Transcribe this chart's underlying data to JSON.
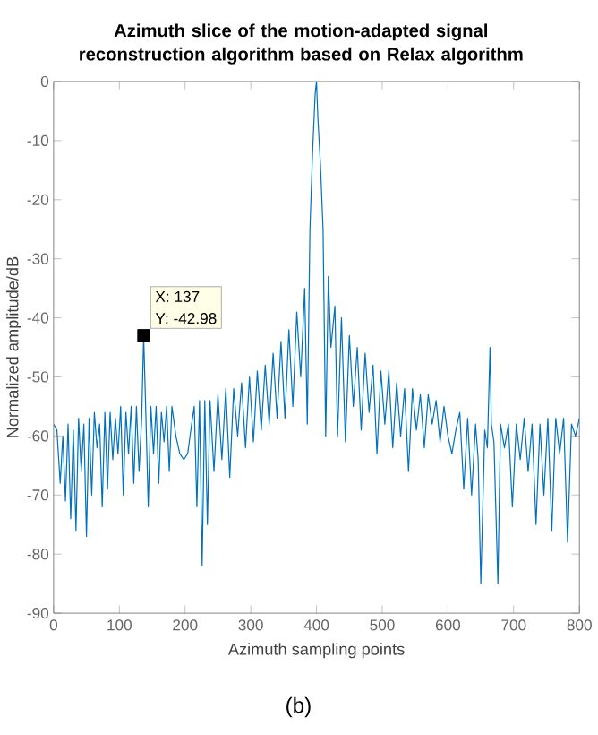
{
  "chart_data": {
    "type": "line",
    "title": "Azimuth slice of the motion-adapted signal reconstruction algorithm based on Relax algorithm",
    "xlabel": "Azimuth sampling points",
    "ylabel": "Normalized amplitude/dB",
    "xlim": [
      0,
      800
    ],
    "ylim": [
      -90,
      0
    ],
    "xticks": [
      0,
      100,
      200,
      300,
      400,
      500,
      600,
      700,
      800
    ],
    "yticks": [
      -90,
      -80,
      -70,
      -60,
      -50,
      -40,
      -30,
      -20,
      -10,
      0
    ],
    "grid": false,
    "marker": "none",
    "line_style": "solid",
    "series": [
      {
        "color": "#0072bd",
        "x": [
          0,
          5,
          10,
          14,
          18,
          22,
          26,
          30,
          34,
          38,
          42,
          46,
          50,
          54,
          58,
          62,
          66,
          70,
          74,
          78,
          82,
          86,
          90,
          94,
          98,
          102,
          106,
          110,
          114,
          118,
          122,
          126,
          130,
          134,
          137,
          140,
          144,
          148,
          152,
          156,
          160,
          164,
          168,
          172,
          176,
          180,
          186,
          192,
          198,
          204,
          210,
          214,
          218,
          222,
          226,
          230,
          234,
          238,
          244,
          250,
          256,
          262,
          268,
          274,
          280,
          286,
          292,
          298,
          304,
          310,
          316,
          322,
          328,
          334,
          340,
          346,
          352,
          358,
          364,
          370,
          376,
          382,
          386,
          390,
          394,
          398,
          400,
          402,
          406,
          410,
          414,
          418,
          422,
          428,
          432,
          438,
          444,
          450,
          456,
          462,
          468,
          474,
          480,
          486,
          492,
          498,
          504,
          510,
          516,
          522,
          528,
          534,
          540,
          546,
          552,
          558,
          564,
          570,
          576,
          582,
          588,
          594,
          600,
          606,
          612,
          618,
          624,
          630,
          636,
          642,
          646,
          650,
          656,
          660,
          664,
          666,
          670,
          676,
          680,
          686,
          692,
          698,
          704,
          710,
          716,
          722,
          728,
          734,
          740,
          746,
          752,
          758,
          764,
          770,
          776,
          782,
          788,
          794,
          800
        ],
        "values": [
          -58,
          -59,
          -68,
          -60,
          -71,
          -58,
          -74,
          -59,
          -76,
          -57,
          -66,
          -58,
          -77,
          -57,
          -70,
          -56,
          -62,
          -58,
          -72,
          -56,
          -69,
          -56,
          -64,
          -57,
          -63,
          -55,
          -70,
          -56,
          -63,
          -55,
          -68,
          -55,
          -66,
          -57,
          -42.98,
          -55,
          -72,
          -55,
          -63,
          -55,
          -68,
          -56,
          -61,
          -55,
          -66,
          -55,
          -60,
          -63,
          -64,
          -63,
          -58,
          -55,
          -72,
          -54,
          -82,
          -54,
          -75,
          -54,
          -66,
          -53,
          -64,
          -52,
          -67,
          -52,
          -60,
          -51,
          -62,
          -50,
          -61,
          -49,
          -59,
          -48,
          -58,
          -46,
          -57,
          -44,
          -57,
          -42,
          -55,
          -39,
          -50,
          -35,
          -58,
          -25,
          -12,
          -2,
          0,
          -6,
          -14,
          -25,
          -60,
          -33,
          -45,
          -38,
          -60,
          -40,
          -61,
          -43,
          -55,
          -45,
          -59,
          -46,
          -56,
          -48,
          -63,
          -49,
          -58,
          -49,
          -62,
          -51,
          -60,
          -52,
          -66,
          -52,
          -59,
          -53,
          -62,
          -53,
          -58,
          -54,
          -61,
          -55,
          -60,
          -63,
          -59,
          -56,
          -69,
          -57,
          -70,
          -58,
          -64,
          -85,
          -59,
          -62,
          -45,
          -58,
          -61,
          -85,
          -58,
          -62,
          -58,
          -72,
          -58,
          -64,
          -57,
          -66,
          -58,
          -75,
          -58,
          -70,
          -57,
          -76,
          -57,
          -63,
          -57,
          -78,
          -58,
          -60,
          -57
        ]
      }
    ],
    "annotations": [
      {
        "text": "X: 137",
        "x": 137,
        "y": -42.98
      },
      {
        "text": "Y: -42.98",
        "x": 137,
        "y": -42.98
      },
      "(b)"
    ]
  }
}
